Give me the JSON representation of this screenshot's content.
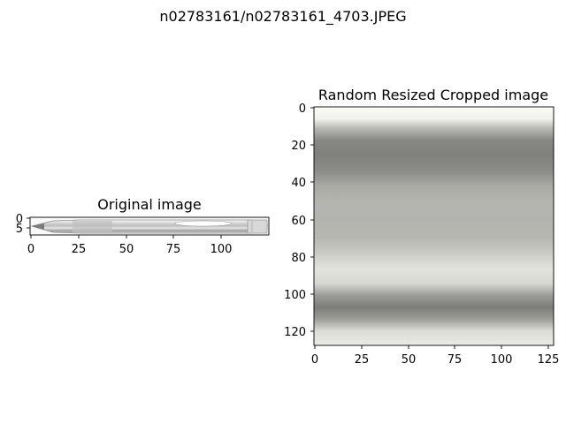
{
  "figure": {
    "suptitle": "n02783161/n02783161_4703.JPEG"
  },
  "panels": [
    {
      "id": "original",
      "title": "Original image",
      "image_description": "ballpoint pen, grayscale, horizontal",
      "xticks": [
        "0",
        "25",
        "50",
        "75",
        "100"
      ],
      "yticks": [
        "0",
        "5"
      ]
    },
    {
      "id": "cropped",
      "title": "Random Resized Cropped image",
      "image_description": "close-up crop of pen barrel, horizontal gray bands",
      "xticks": [
        "0",
        "25",
        "50",
        "75",
        "100",
        "125"
      ],
      "yticks": [
        "0",
        "20",
        "40",
        "60",
        "80",
        "100",
        "120"
      ]
    }
  ]
}
